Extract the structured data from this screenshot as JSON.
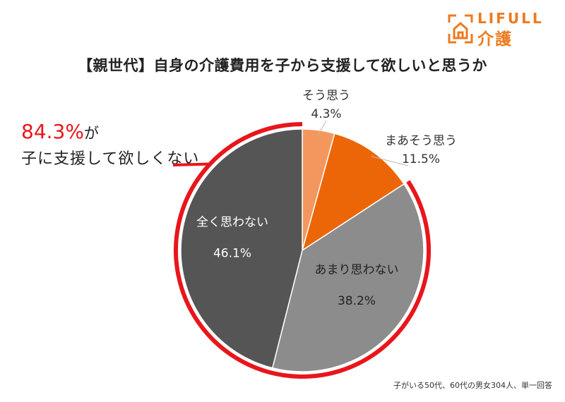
{
  "brand": {
    "name_en": "LIFULL",
    "name_jp": "介護",
    "color": "#ee7a1f"
  },
  "chart_data": {
    "type": "pie",
    "title": "【親世代】自身の介護費用を子から支援して欲しいと思うか",
    "slices": [
      {
        "label": "そう思う",
        "value": 4.3,
        "display": "4.3%",
        "color": "#f4975e"
      },
      {
        "label": "まあそう思う",
        "value": 11.5,
        "display": "11.5%",
        "color": "#ec6608"
      },
      {
        "label": "あまり思わない",
        "value": 38.2,
        "display": "38.2%",
        "color": "#8c8c8c"
      },
      {
        "label": "全く思わない",
        "value": 46.1,
        "display": "46.1%",
        "color": "#555555"
      }
    ],
    "highlight": {
      "value": "84.3%",
      "suffix": "が",
      "text": "子に支援して欲しくない",
      "color": "#e8161b"
    }
  },
  "footnote": "子がいる50代、60代の男女304人、単一回答"
}
